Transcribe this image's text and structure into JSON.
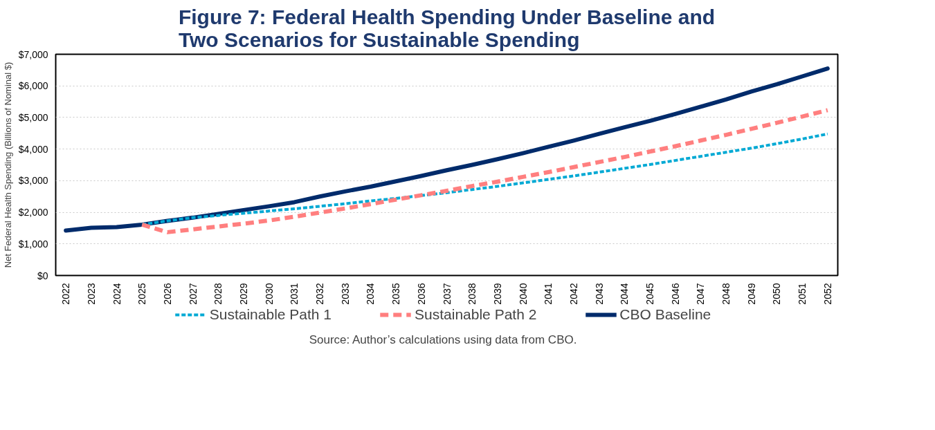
{
  "chart_data": {
    "type": "line",
    "title": "Figure 7: Federal Health Spending Under Baseline and\nTwo Scenarios for Sustainable Spending",
    "ylabel": "Net Federal Health Spending (Billions of Nominal $)",
    "categories": [
      "2022",
      "2023",
      "2024",
      "2025",
      "2026",
      "2027",
      "2028",
      "2029",
      "2030",
      "2031",
      "2032",
      "2033",
      "2034",
      "2035",
      "2036",
      "2037",
      "2038",
      "2039",
      "2040",
      "2041",
      "2042",
      "2043",
      "2044",
      "2045",
      "2046",
      "2047",
      "2048",
      "2049",
      "2050",
      "2051",
      "2052"
    ],
    "series": [
      {
        "name": "Sustainable Path 1",
        "color": "#00a9d4",
        "line_style": "dashed",
        "values": [
          null,
          null,
          null,
          1610,
          1730,
          1830,
          1900,
          1970,
          2040,
          2110,
          2190,
          2270,
          2360,
          2440,
          2530,
          2620,
          2720,
          2820,
          2930,
          3040,
          3150,
          3270,
          3390,
          3510,
          3640,
          3770,
          3900,
          4030,
          4170,
          4320,
          4480
        ]
      },
      {
        "name": "Sustainable Path 2",
        "color": "#ff7f7f",
        "line_style": "dashed",
        "values": [
          null,
          null,
          null,
          1610,
          1370,
          1460,
          1550,
          1640,
          1740,
          1860,
          1990,
          2120,
          2260,
          2400,
          2540,
          2680,
          2830,
          2970,
          3120,
          3270,
          3430,
          3590,
          3750,
          3920,
          4090,
          4270,
          4450,
          4640,
          4830,
          5030,
          5230
        ]
      },
      {
        "name": "CBO Baseline",
        "color": "#002b6b",
        "line_style": "solid",
        "values": [
          1420,
          1510,
          1530,
          1610,
          1730,
          1830,
          1950,
          2070,
          2190,
          2320,
          2500,
          2660,
          2810,
          2980,
          3150,
          3330,
          3500,
          3680,
          3870,
          4070,
          4270,
          4480,
          4690,
          4890,
          5110,
          5340,
          5570,
          5820,
          6050,
          6300,
          6550
        ]
      }
    ],
    "ylim": [
      0,
      7000
    ],
    "yticks": [
      {
        "value": 0,
        "label": "$0"
      },
      {
        "value": 1000,
        "label": "$1,000"
      },
      {
        "value": 2000,
        "label": "$2,000"
      },
      {
        "value": 3000,
        "label": "$3,000"
      },
      {
        "value": 4000,
        "label": "$4,000"
      },
      {
        "value": 5000,
        "label": "$5,000"
      },
      {
        "value": 6000,
        "label": "$6,000"
      },
      {
        "value": 7000,
        "label": "$7,000"
      }
    ],
    "grid": "y",
    "legend": "bottom",
    "marker": "none",
    "annotations": [
      "Source: Author’s calculations using data from CBO."
    ]
  }
}
